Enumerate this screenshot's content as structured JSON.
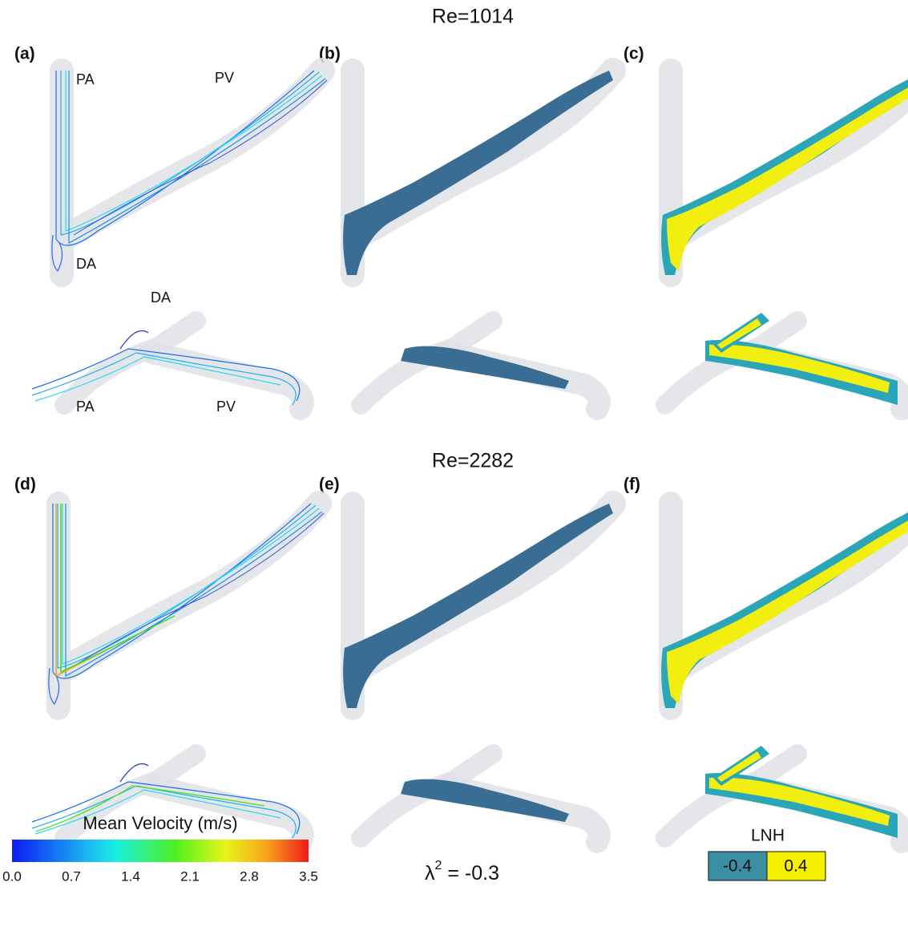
{
  "titles": [
    "Re=1014",
    "Re=2282"
  ],
  "panel_labels": [
    "(a)",
    "(b)",
    "(c)",
    "(d)",
    "(e)",
    "(f)"
  ],
  "vessel_labels": {
    "top_view": [
      "PA",
      "PV",
      "DA"
    ],
    "side_view": [
      "DA",
      "PA",
      "PV"
    ]
  },
  "velocity_legend": {
    "title": "Mean Velocity (m/s)",
    "ticks": [
      "0.0",
      "0.7",
      "1.4",
      "2.1",
      "2.8",
      "3.5"
    ]
  },
  "criterion": {
    "symbol": "λ",
    "superscript": "2",
    "rest": " = -0.3"
  },
  "lnh_legend": {
    "title": "LNH",
    "low": "-0.4",
    "high": "0.4"
  }
}
